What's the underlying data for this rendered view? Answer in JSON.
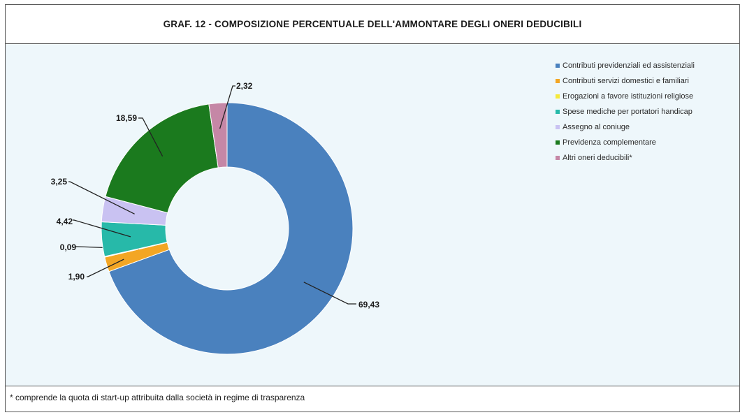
{
  "chart_data": {
    "type": "pie",
    "title": "GRAF. 12 - COMPOSIZIONE PERCENTUALE DELL'AMMONTARE DEGLI ONERI DEDUCIBILI",
    "donut": true,
    "legend_position": "top-right",
    "slices": [
      {
        "name": "Contributi previdenziali ed assistenziali",
        "value": 69.43,
        "label": "69,43",
        "color": "#4a81be"
      },
      {
        "name": "Contributi servizi domestici e familiari",
        "value": 1.9,
        "label": "1,90",
        "color": "#f3a624"
      },
      {
        "name": "Erogazioni a favore istituzioni religiose",
        "value": 0.09,
        "label": "0,09",
        "color": "#f5e93a"
      },
      {
        "name": "Spese mediche per portatori handicap",
        "value": 4.42,
        "label": "4,42",
        "color": "#27b9a9"
      },
      {
        "name": "Assegno al coniuge",
        "value": 3.25,
        "label": "3,25",
        "color": "#c9c2f2"
      },
      {
        "name": "Previdenza complementare",
        "value": 18.59,
        "label": "18,59",
        "color": "#1b7a1e"
      },
      {
        "name": "Altri oneri deducibili*",
        "value": 2.32,
        "label": "2,32",
        "color": "#c587a6"
      }
    ]
  },
  "footnote": "* comprende la quota di start-up attribuita dalla società in regime di trasparenza"
}
